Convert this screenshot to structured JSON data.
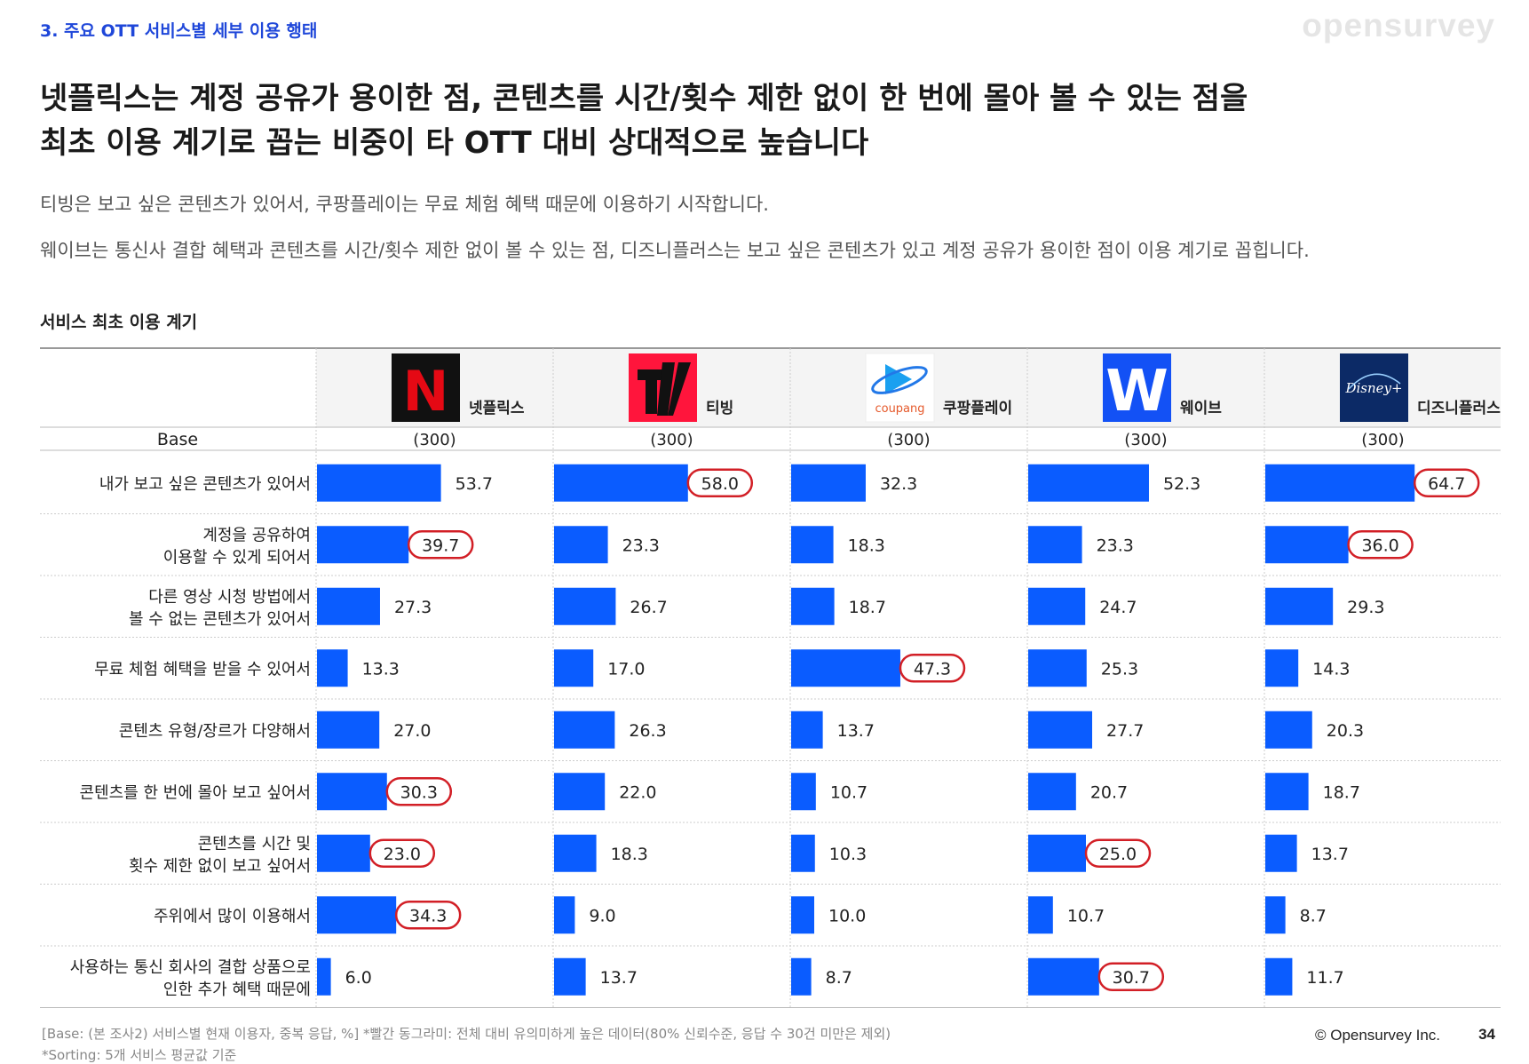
{
  "header": {
    "section_label": "3. 주요 OTT 서비스별 세부 이용 행태",
    "brand": "opensurvey",
    "headline_line1": "넷플릭스는 계정 공유가 용이한 점, 콘텐츠를 시간/횟수 제한 없이 한 번에 몰아 볼 수 있는 점을",
    "headline_line2": "최초 이용 계기로 꼽는 비중이 타 OTT 대비 상대적으로 높습니다",
    "desc1": "티빙은 보고 싶은 콘텐츠가 있어서, 쿠팡플레이는 무료 체험 혜택 때문에 이용하기 시작합니다.",
    "desc2": "웨이브는 통신사 결합 혜택과 콘텐츠를 시간/횟수 제한 없이 볼 수 있는 점, 디즈니플러스는 보고 싶은 콘텐츠가 있고 계정 공유가 용이한 점이 이용 계기로 꼽힙니다."
  },
  "chart_data": {
    "type": "bar",
    "title": "서비스 최초 이용 계기",
    "base_label": "Base",
    "unit": "%",
    "xlim": [
      0,
      100
    ],
    "bar_color": "#0a5cff",
    "highlight_color": "#d21f26",
    "categories": [
      [
        "내가 보고 싶은 콘텐츠가 있어서"
      ],
      [
        "계정을 공유하여",
        "이용할 수 있게 되어서"
      ],
      [
        "다른 영상 시청 방법에서",
        "볼 수 없는 콘텐츠가 있어서"
      ],
      [
        "무료 체험 혜택을 받을 수 있어서"
      ],
      [
        "콘텐츠 유형/장르가 다양해서"
      ],
      [
        "콘텐츠를 한 번에 몰아 보고 싶어서"
      ],
      [
        "콘텐츠를 시간 및",
        "횟수 제한 없이 보고 싶어서"
      ],
      [
        "주위에서 많이 이용해서"
      ],
      [
        "사용하는 통신 회사의 결합 상품으로",
        "인한 추가 혜택 때문에"
      ]
    ],
    "series": [
      {
        "name": "넷플릭스",
        "base": "(300)",
        "logo": "netflix-logo",
        "logo_text": "N",
        "logo_bg": "#111111",
        "logo_fg": "#e50914",
        "values": [
          53.7,
          39.7,
          27.3,
          13.3,
          27.0,
          30.3,
          23.0,
          34.3,
          6.0
        ],
        "highlighted": [
          false,
          true,
          false,
          false,
          false,
          true,
          true,
          true,
          false
        ]
      },
      {
        "name": "티빙",
        "base": "(300)",
        "logo": "tving-logo",
        "logo_text": "",
        "values": [
          58.0,
          23.3,
          26.7,
          17.0,
          26.3,
          22.0,
          18.3,
          9.0,
          13.7
        ],
        "highlighted": [
          true,
          false,
          false,
          false,
          false,
          false,
          false,
          false,
          false
        ]
      },
      {
        "name": "쿠팡플레이",
        "base": "(300)",
        "logo": "coupang-play-logo",
        "logo_text": "coupang",
        "values": [
          32.3,
          18.3,
          18.7,
          47.3,
          13.7,
          10.7,
          10.3,
          10.0,
          8.7
        ],
        "highlighted": [
          false,
          false,
          false,
          true,
          false,
          false,
          false,
          false,
          false
        ]
      },
      {
        "name": "웨이브",
        "base": "(300)",
        "logo": "wavve-logo",
        "logo_text": "W",
        "logo_bg": "#1351f5",
        "logo_fg": "#ffffff",
        "values": [
          52.3,
          23.3,
          24.7,
          25.3,
          27.7,
          20.7,
          25.0,
          10.7,
          30.7
        ],
        "highlighted": [
          false,
          false,
          false,
          false,
          false,
          false,
          true,
          false,
          true
        ]
      },
      {
        "name": "디즈니플러스",
        "base": "(300)",
        "logo": "disney-plus-logo",
        "logo_text": "Disney+",
        "logo_bg": "#0c2a66",
        "logo_fg": "#ffffff",
        "values": [
          64.7,
          36.0,
          29.3,
          14.3,
          20.3,
          18.7,
          13.7,
          8.7,
          11.7
        ],
        "highlighted": [
          true,
          true,
          false,
          false,
          false,
          false,
          false,
          false,
          false
        ]
      }
    ]
  },
  "footer": {
    "note1": "[Base: (본 조사2) 서비스별 현재 이용자, 중복 응답, %] *빨간 동그라미: 전체 대비 유의미하게 높은 데이터(80% 신뢰수준, 응답 수 30건 미만은 제외)",
    "note2": "*Sorting: 5개 서비스 평균값 기준",
    "copyright": "© Opensurvey Inc.",
    "page_number": "34"
  }
}
